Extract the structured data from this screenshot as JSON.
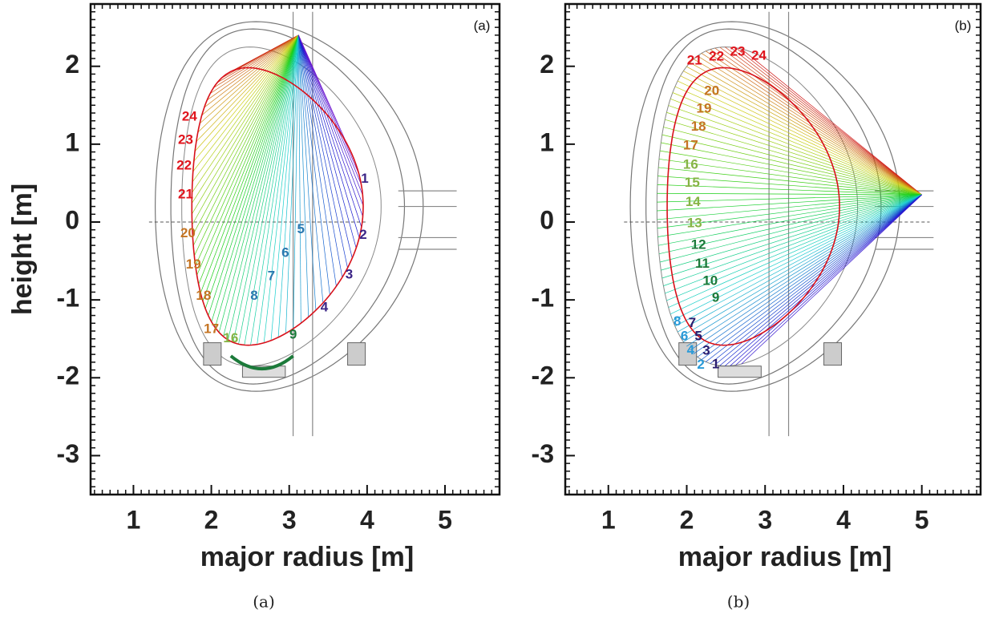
{
  "panels": [
    {
      "tag": "(a)",
      "caption": "(a)",
      "x_label": "major radius [m]",
      "y_label": "height [m]",
      "xlim": [
        0.45,
        5.7
      ],
      "ylim": [
        -3.5,
        2.8
      ],
      "xticks": [
        1,
        2,
        3,
        4,
        5
      ],
      "yticks": [
        2,
        1,
        0,
        -1,
        -2,
        -3
      ],
      "channels": [
        {
          "label": "1",
          "color": "#3b2486"
        },
        {
          "label": "2",
          "color": "#3b2486"
        },
        {
          "label": "3",
          "color": "#3b2486"
        },
        {
          "label": "4",
          "color": "#3b2486"
        },
        {
          "label": "5",
          "color": "#2a78b0"
        },
        {
          "label": "6",
          "color": "#2a78b0"
        },
        {
          "label": "7",
          "color": "#2a78b0"
        },
        {
          "label": "8",
          "color": "#2a78b0"
        },
        {
          "label": "9",
          "color": "#1c7a3a"
        },
        {
          "label": "16",
          "color": "#86b445"
        },
        {
          "label": "17",
          "color": "#c47423"
        },
        {
          "label": "18",
          "color": "#c47423"
        },
        {
          "label": "19",
          "color": "#c47423"
        },
        {
          "label": "20",
          "color": "#c47423"
        },
        {
          "label": "21",
          "color": "#e0141c"
        },
        {
          "label": "22",
          "color": "#e0141c"
        },
        {
          "label": "23",
          "color": "#e0141c"
        },
        {
          "label": "24",
          "color": "#e0141c"
        }
      ]
    },
    {
      "tag": "(b)",
      "caption": "(b)",
      "x_label": "major radius [m]",
      "xlim": [
        0.45,
        5.75
      ],
      "ylim": [
        -3.5,
        2.8
      ],
      "xticks": [
        1,
        2,
        3,
        4,
        5
      ],
      "yticks": [
        2,
        1,
        0,
        -1,
        -2,
        -3
      ],
      "channels": [
        {
          "label": "1",
          "color": "#2a1c6e"
        },
        {
          "label": "2",
          "color": "#2a9ad8"
        },
        {
          "label": "3",
          "color": "#2a1c6e"
        },
        {
          "label": "4",
          "color": "#2a9ad8"
        },
        {
          "label": "5",
          "color": "#2a1c6e"
        },
        {
          "label": "6",
          "color": "#2a9ad8"
        },
        {
          "label": "7",
          "color": "#2a1c6e"
        },
        {
          "label": "8",
          "color": "#2a9ad8"
        },
        {
          "label": "9",
          "color": "#1c7a3a"
        },
        {
          "label": "10",
          "color": "#1c7a3a"
        },
        {
          "label": "11",
          "color": "#1c7a3a"
        },
        {
          "label": "12",
          "color": "#1c7a3a"
        },
        {
          "label": "13",
          "color": "#86b445"
        },
        {
          "label": "14",
          "color": "#86b445"
        },
        {
          "label": "15",
          "color": "#86b445"
        },
        {
          "label": "16",
          "color": "#86b445"
        },
        {
          "label": "17",
          "color": "#c47423"
        },
        {
          "label": "18",
          "color": "#c47423"
        },
        {
          "label": "19",
          "color": "#c47423"
        },
        {
          "label": "20",
          "color": "#c47423"
        },
        {
          "label": "21",
          "color": "#e0141c"
        },
        {
          "label": "22",
          "color": "#e0141c"
        },
        {
          "label": "23",
          "color": "#e0141c"
        },
        {
          "label": "24",
          "color": "#e0141c"
        }
      ]
    }
  ]
}
